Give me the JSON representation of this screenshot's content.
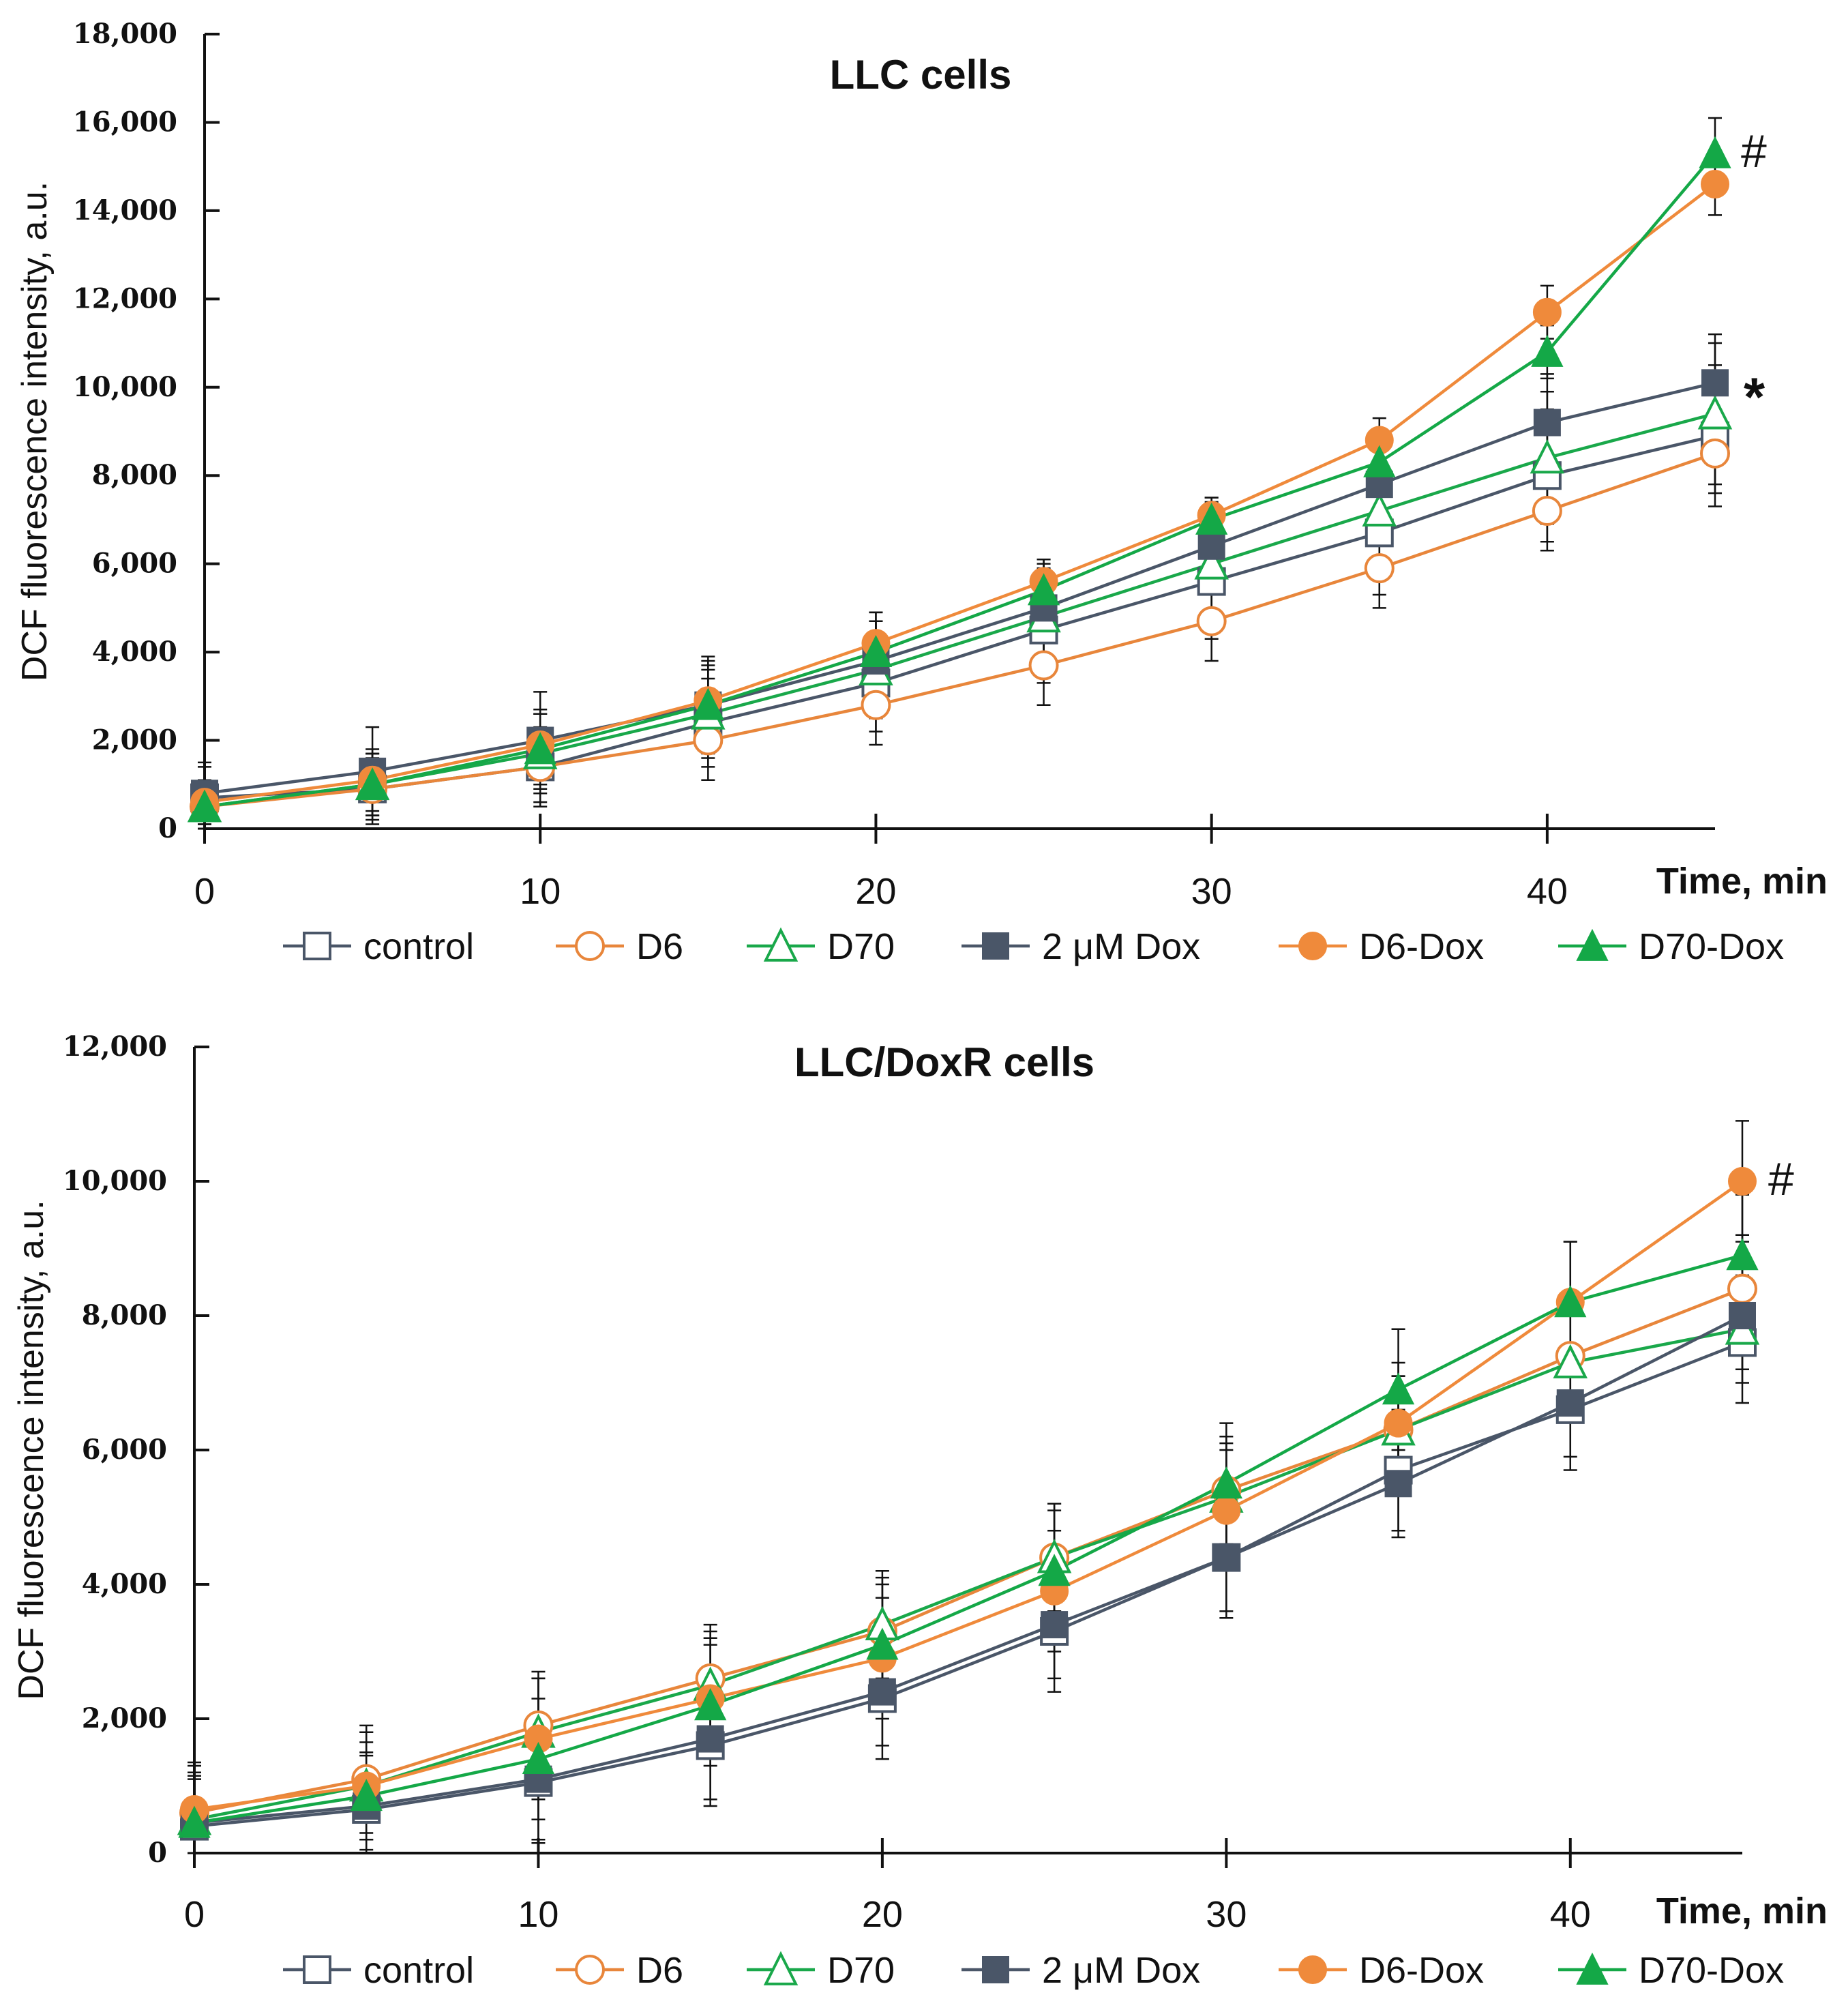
{
  "chart_data": [
    {
      "type": "line",
      "title": "LLC cells",
      "xlabel": "Time, min",
      "ylabel": "DCF fluorescence intensity, a.u.",
      "xlim": [
        0,
        45
      ],
      "ylim": [
        0,
        18000
      ],
      "xticks": [
        0,
        10,
        20,
        30,
        40
      ],
      "xtick_labels": [
        "0",
        "10",
        "20",
        "30",
        "40"
      ],
      "yticks": [
        0,
        2000,
        4000,
        6000,
        8000,
        10000,
        12000,
        14000,
        16000,
        18000
      ],
      "ytick_labels": [
        "0",
        "2,000",
        "4,000",
        "6,000",
        "8,000",
        "10,000",
        "12,000",
        "14,000",
        "16,000",
        "18,000"
      ],
      "x": [
        0,
        5,
        10,
        15,
        20,
        25,
        30,
        35,
        40,
        45
      ],
      "series": [
        {
          "name": "control",
          "color": "#4a5668",
          "marker": "square-open",
          "values": [
            700,
            900,
            1400,
            2400,
            3300,
            4500,
            5600,
            6700,
            8000,
            8900
          ],
          "errors": [
            700,
            800,
            900,
            1000,
            1100,
            1200,
            1300,
            1400,
            1500,
            1600
          ]
        },
        {
          "name": "D6",
          "color": "#e8863b",
          "marker": "circle-open",
          "values": [
            500,
            900,
            1400,
            2000,
            2800,
            3700,
            4700,
            5900,
            7200,
            8500
          ],
          "errors": [
            500,
            700,
            800,
            900,
            900,
            900,
            900,
            900,
            900,
            900
          ]
        },
        {
          "name": "D70",
          "color": "#19a84a",
          "marker": "triangle-open",
          "values": [
            500,
            1000,
            1700,
            2600,
            3600,
            4800,
            6000,
            7200,
            8400,
            9400
          ],
          "errors": [
            500,
            700,
            900,
            1000,
            1100,
            1200,
            1300,
            1400,
            1500,
            1600
          ]
        },
        {
          "name": "2 μM Dox",
          "color": "#4a5668",
          "marker": "square-filled",
          "values": [
            800,
            1300,
            2000,
            2800,
            3800,
            5000,
            6400,
            7800,
            9200,
            10100
          ],
          "errors": [
            700,
            1000,
            1100,
            1100,
            1100,
            1100,
            1100,
            1100,
            1100,
            1100
          ]
        },
        {
          "name": "D6-Dox",
          "color": "#ef8a3b",
          "marker": "circle-filled",
          "values": [
            600,
            1100,
            1900,
            2900,
            4200,
            5600,
            7100,
            8800,
            11700,
            14600
          ],
          "errors": [
            500,
            700,
            800,
            900,
            700,
            500,
            400,
            500,
            600,
            700
          ]
        },
        {
          "name": "D70-Dox",
          "color": "#14a847",
          "marker": "triangle-filled",
          "values": [
            500,
            1000,
            1800,
            2800,
            4000,
            5400,
            7000,
            8300,
            10800,
            15300
          ],
          "errors": [
            500,
            700,
            800,
            900,
            700,
            500,
            400,
            500,
            600,
            800
          ]
        }
      ],
      "annotations": [
        {
          "text": "#",
          "x": 45,
          "y": 15300
        },
        {
          "text": "*",
          "x": 45,
          "y": 10100
        }
      ]
    },
    {
      "type": "line",
      "title": "LLC/DoxR cells",
      "xlabel": "Time, min",
      "ylabel": "DCF fluorescence intensity, a.u.",
      "xlim": [
        0,
        45
      ],
      "ylim": [
        0,
        12000
      ],
      "xticks": [
        0,
        10,
        20,
        30,
        40
      ],
      "xtick_labels": [
        "0",
        "10",
        "20",
        "30",
        "40"
      ],
      "yticks": [
        0,
        2000,
        4000,
        6000,
        8000,
        10000,
        12000
      ],
      "ytick_labels": [
        "0",
        "2,000",
        "4,000",
        "6,000",
        "8,000",
        "10,000",
        "12,000"
      ],
      "x": [
        0,
        5,
        10,
        15,
        20,
        25,
        30,
        35,
        40,
        45
      ],
      "series": [
        {
          "name": "control",
          "color": "#4a5668",
          "marker": "square-open",
          "values": [
            400,
            650,
            1050,
            1600,
            2300,
            3300,
            4400,
            5700,
            6600,
            7600
          ],
          "errors": [
            700,
            800,
            900,
            900,
            900,
            900,
            900,
            900,
            900,
            900
          ]
        },
        {
          "name": "D6",
          "color": "#e8863b",
          "marker": "circle-open",
          "values": [
            600,
            1100,
            1900,
            2600,
            3300,
            4400,
            5400,
            6300,
            7400,
            8400
          ],
          "errors": [
            700,
            800,
            800,
            800,
            800,
            800,
            800,
            800,
            800,
            800
          ]
        },
        {
          "name": "D70",
          "color": "#19a84a",
          "marker": "triangle-open",
          "values": [
            500,
            1000,
            1800,
            2500,
            3400,
            4400,
            5300,
            6300,
            7300,
            7800
          ],
          "errors": [
            700,
            800,
            800,
            800,
            800,
            800,
            800,
            800,
            800,
            800
          ]
        },
        {
          "name": "2 μM Dox",
          "color": "#4a5668",
          "marker": "square-filled",
          "values": [
            450,
            700,
            1100,
            1700,
            2400,
            3400,
            4400,
            5500,
            6700,
            8000
          ],
          "errors": [
            700,
            800,
            900,
            900,
            800,
            800,
            800,
            800,
            800,
            800
          ]
        },
        {
          "name": "D6-Dox",
          "color": "#ef8a3b",
          "marker": "circle-filled",
          "values": [
            650,
            1000,
            1700,
            2300,
            2900,
            3900,
            5100,
            6400,
            8200,
            10000
          ],
          "errors": [
            700,
            800,
            900,
            900,
            900,
            900,
            900,
            900,
            900,
            900
          ]
        },
        {
          "name": "D70-Dox",
          "color": "#14a847",
          "marker": "triangle-filled",
          "values": [
            450,
            850,
            1400,
            2200,
            3100,
            4200,
            5500,
            6900,
            8200,
            8900
          ],
          "errors": [
            700,
            800,
            900,
            900,
            900,
            900,
            900,
            900,
            900,
            900
          ]
        }
      ],
      "annotations": [
        {
          "text": "#",
          "x": 45,
          "y": 10000
        }
      ]
    }
  ]
}
